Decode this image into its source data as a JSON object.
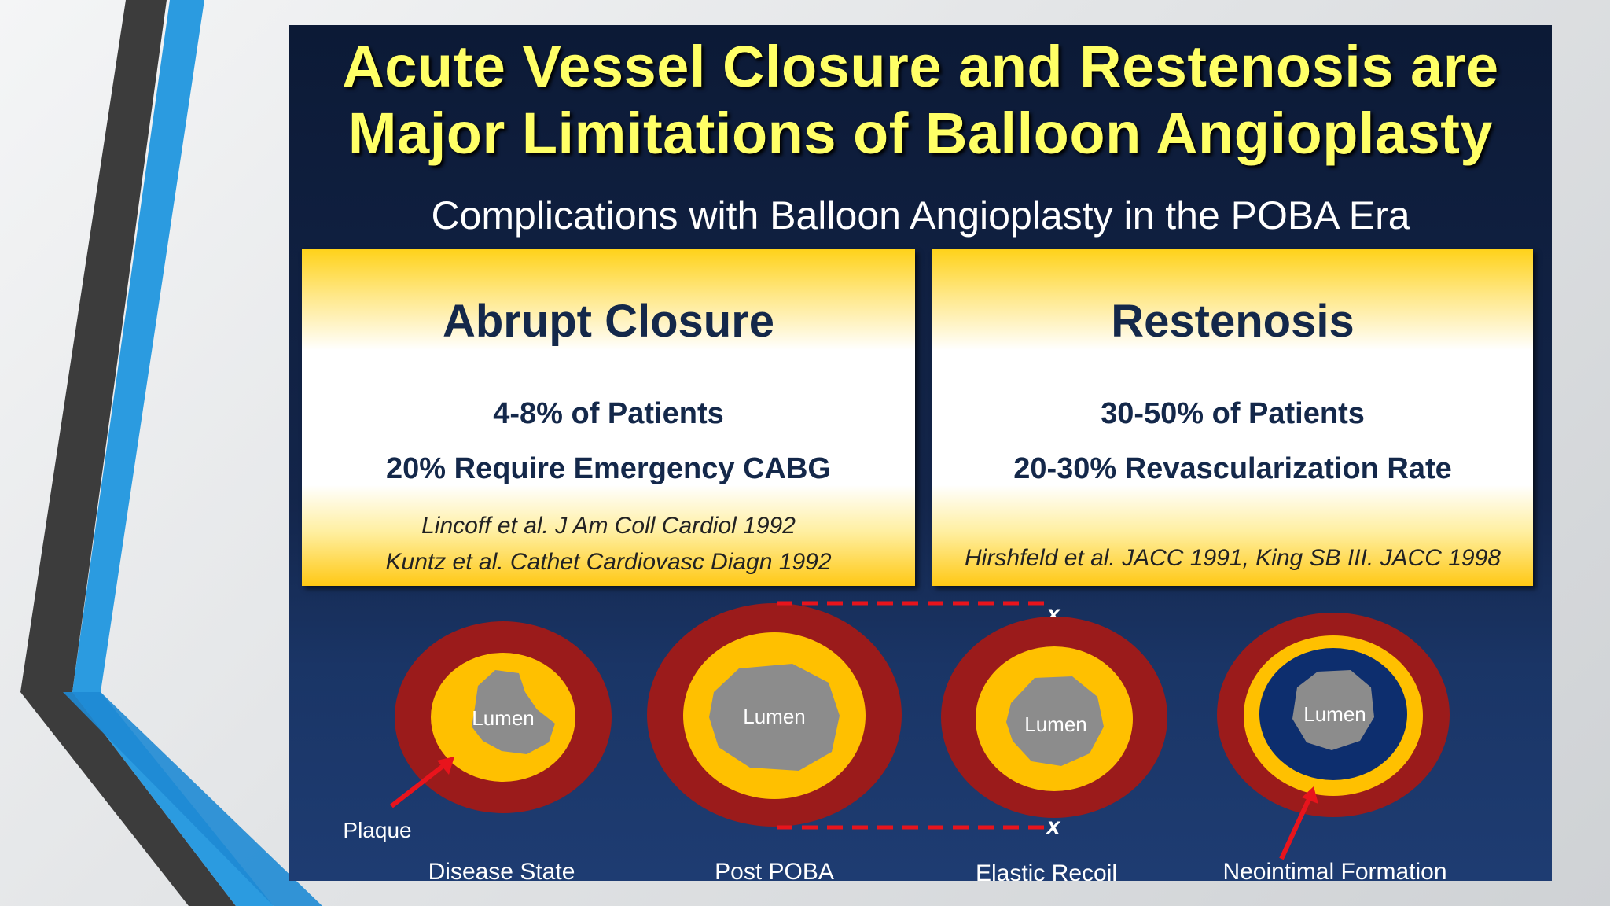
{
  "slide": {
    "title_line1": "Acute Vessel Closure and Restenosis are",
    "title_line2": "Major Limitations of Balloon Angioplasty",
    "subtitle": "Complications with Balloon Angioplasty in the POBA Era"
  },
  "panels": {
    "left": {
      "title": "Abrupt Closure",
      "stat1": "4-8% of Patients",
      "stat2": "20% Require Emergency CABG",
      "ref1": "Lincoff et al. J Am Coll Cardiol 1992",
      "ref2": "Kuntz et al. Cathet Cardiovasc Diagn 1992"
    },
    "right": {
      "title": "Restenosis",
      "stat1": "30-50% of Patients",
      "stat2": "20-30% Revascularization Rate",
      "ref1": "Hirshfeld et al. JACC 1991, King SB III. JACC 1998"
    }
  },
  "diagram": {
    "lumen_label": "Lumen",
    "plaque_label": "Plaque",
    "recoil_marker": "x",
    "stages": [
      {
        "label": "Disease State"
      },
      {
        "label": "Post POBA"
      },
      {
        "label": "Elastic Recoil"
      },
      {
        "label": "Neointimal Formation"
      }
    ]
  },
  "colors": {
    "title": "#ffff66",
    "vessel_wall": "#9b1b1b",
    "plaque": "#ffc000",
    "lumen": "#8c8c8c",
    "neointima": "#0d2e6e",
    "arrow": "#e8141c"
  }
}
